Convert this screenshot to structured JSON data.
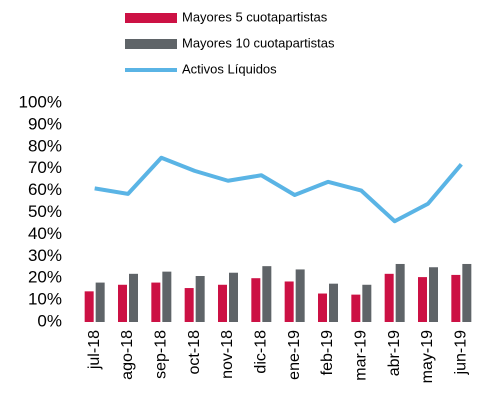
{
  "chart_data": {
    "type": "bar",
    "categories": [
      "jul-18",
      "ago-18",
      "sep-18",
      "oct-18",
      "nov-18",
      "dic-18",
      "ene-19",
      "feb-19",
      "mar-19",
      "abr-19",
      "may-19",
      "jun-19"
    ],
    "series": [
      {
        "name": "Mayores 5 cuotapartistas",
        "color": "#cc1144",
        "values": [
          14,
          17,
          18,
          15.5,
          17,
          20,
          18.5,
          13,
          12.5,
          22,
          20.5,
          21.5
        ]
      },
      {
        "name": "Mayores 10 cuotapartistas",
        "color": "#5f6468",
        "values": [
          18,
          22,
          23,
          21,
          22.5,
          25.5,
          24,
          17.5,
          17,
          26.5,
          25,
          26.5
        ]
      },
      {
        "name": "Activos Líquidos",
        "color": "#5ab4e5",
        "type": "line",
        "values": [
          61,
          58.5,
          75,
          69,
          64.5,
          67,
          58,
          64,
          60,
          46,
          54,
          72
        ]
      }
    ],
    "ylim": [
      0,
      100
    ],
    "yticks": [
      {
        "value": 0,
        "label": "0%"
      },
      {
        "value": 10,
        "label": "10%"
      },
      {
        "value": 20,
        "label": "20%"
      },
      {
        "value": 30,
        "label": "30%"
      },
      {
        "value": 40,
        "label": "40%"
      },
      {
        "value": 50,
        "label": "50%"
      },
      {
        "value": 60,
        "label": "60%"
      },
      {
        "value": 70,
        "label": "70%"
      },
      {
        "value": 80,
        "label": "80%"
      },
      {
        "value": 90,
        "label": "90%"
      },
      {
        "value": 100,
        "label": "100%"
      }
    ],
    "grid": false
  }
}
